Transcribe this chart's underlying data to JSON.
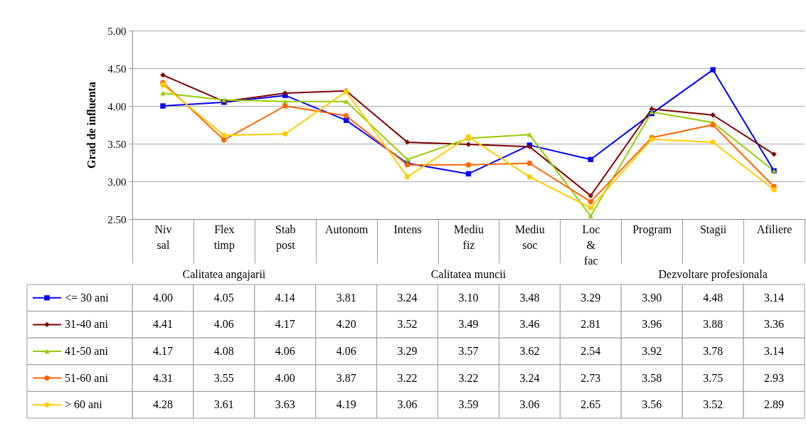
{
  "chart_data": {
    "type": "line",
    "ylabel": "Grad de influenta",
    "categories": [
      "Niv sal",
      "Flex timp",
      "Stab post",
      "Autonom",
      "Intens",
      "Mediu fiz",
      "Mediu soc",
      "Loc & fac",
      "Program",
      "Stagii",
      "Afiliere"
    ],
    "series": [
      {
        "name": "<= 30 ani",
        "color": "#0000ff",
        "marker": "square",
        "values": [
          4.0,
          4.05,
          4.14,
          3.81,
          3.24,
          3.1,
          3.48,
          3.29,
          3.9,
          4.48,
          3.14
        ],
        "value_labels": [
          "4.00",
          "4.05",
          "4.14",
          "3.81",
          "3.24",
          "3.10",
          "3.48",
          "3.29",
          "3.90",
          "4.48",
          "3.14"
        ]
      },
      {
        "name": "31-40 ani",
        "color": "#7f0000",
        "marker": "diamond",
        "values": [
          4.41,
          4.06,
          4.17,
          4.2,
          3.52,
          3.49,
          3.46,
          2.81,
          3.96,
          3.88,
          3.36
        ],
        "value_labels": [
          "4.41",
          "4.06",
          "4.17",
          "4.20",
          "3.52",
          "3.49",
          "3.46",
          "2.81",
          "3.96",
          "3.88",
          "3.36"
        ]
      },
      {
        "name": "41-50 ani",
        "color": "#99cc00",
        "marker": "triangle",
        "values": [
          4.17,
          4.08,
          4.06,
          4.06,
          3.29,
          3.57,
          3.62,
          2.54,
          3.92,
          3.78,
          3.14
        ],
        "value_labels": [
          "4.17",
          "4.08",
          "4.06",
          "4.06",
          "3.29",
          "3.57",
          "3.62",
          "2.54",
          "3.92",
          "3.78",
          "3.14"
        ]
      },
      {
        "name": "51-60 ani",
        "color": "#ff6600",
        "marker": "circle",
        "values": [
          4.31,
          3.55,
          4.0,
          3.87,
          3.22,
          3.22,
          3.24,
          2.73,
          3.58,
          3.75,
          2.93
        ],
        "value_labels": [
          "4.31",
          "3.55",
          "4.00",
          "3.87",
          "3.22",
          "3.22",
          "3.24",
          "2.73",
          "3.58",
          "3.75",
          "2.93"
        ]
      },
      {
        "name": "> 60 ani",
        "color": "#ffcc00",
        "marker": "circle",
        "values": [
          4.28,
          3.61,
          3.63,
          4.19,
          3.06,
          3.59,
          3.06,
          2.65,
          3.56,
          3.52,
          2.89
        ],
        "value_labels": [
          "4.28",
          "3.61",
          "3.63",
          "4.19",
          "3.06",
          "3.59",
          "3.06",
          "2.65",
          "3.56",
          "3.52",
          "2.89"
        ]
      }
    ],
    "ylim": [
      2.5,
      5
    ],
    "yticks": [
      {
        "value": 2.5,
        "label": "2.50"
      },
      {
        "value": 3,
        "label": "3.00"
      },
      {
        "value": 3.5,
        "label": "3.50"
      },
      {
        "value": 4,
        "label": "4.00"
      },
      {
        "value": 4.5,
        "label": "4.50"
      },
      {
        "value": 5,
        "label": "5.00"
      }
    ],
    "grid": "y",
    "legend": "bottom left",
    "annotations": [
      "Calitatea angajarii",
      "Calitatea muncii",
      "Dezvoltare profesionala"
    ]
  }
}
